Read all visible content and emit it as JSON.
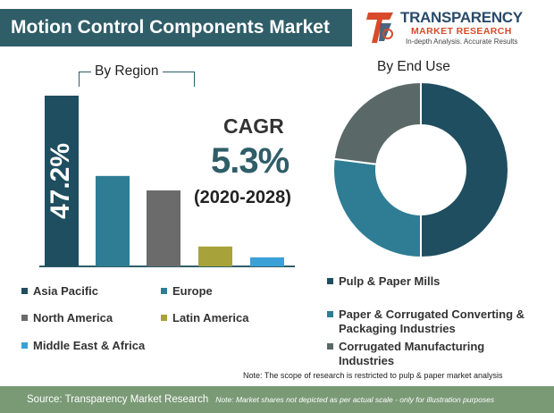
{
  "header": {
    "title": "Motion Control Components Market"
  },
  "logo": {
    "line1": "TRANSPARENCY",
    "line2": "MARKET RESEARCH",
    "line3": "In-depth Analysis. Accurate Results",
    "icon": "tmr-logo-mark",
    "colors": {
      "primary": "#2a4a6a",
      "accent": "#d84a2a"
    }
  },
  "headings": {
    "by_region": "By Region",
    "by_end_use": "By End Use"
  },
  "cagr": {
    "label": "CAGR",
    "value": "5.3%",
    "period": "(2020-2028)"
  },
  "chart_data": [
    {
      "type": "bar",
      "title": "By Region",
      "categories": [
        "Asia Pacific",
        "Europe",
        "North America",
        "Latin America",
        "Middle East & Africa"
      ],
      "values": [
        47.2,
        25,
        21,
        5.5,
        2.5
      ],
      "value_labels": [
        "47.2%",
        "",
        "",
        "",
        ""
      ],
      "colors": [
        "#1e4e5f",
        "#2e7d94",
        "#6b6b6b",
        "#a8a23a",
        "#3aa0d8"
      ],
      "grid": false
    },
    {
      "type": "pie",
      "title": "By End Use",
      "donut": true,
      "categories": [
        "Pulp & Paper Mills",
        "Paper & Corrugated Converting & Packaging Industries",
        "Corrugated Manufacturing Industries"
      ],
      "values": [
        50,
        27,
        23
      ],
      "colors": [
        "#1e4e5f",
        "#2e7d94",
        "#5a6868"
      ]
    }
  ],
  "region_legend": [
    {
      "label": "Asia Pacific",
      "color": "#1e4e5f"
    },
    {
      "label": "Europe",
      "color": "#2e7d94"
    },
    {
      "label": "North America",
      "color": "#6b6b6b"
    },
    {
      "label": "Latin America",
      "color": "#a8a23a"
    },
    {
      "label": "Middle East & Africa",
      "color": "#3aa0d8"
    }
  ],
  "enduse_legend": [
    {
      "label": "Pulp & Paper Mills",
      "color": "#1e4e5f"
    },
    {
      "label": "Paper & Corrugated Converting & Packaging Industries",
      "color": "#2e7d94"
    },
    {
      "label": "Corrugated Manufacturing Industries",
      "color": "#5a6868"
    }
  ],
  "note": "Note: The scope of research is restricted to pulp & paper market analysis",
  "footer": {
    "source": "Source: Transparency Market Research",
    "note": "Note: Market shares not depicted as per actual scale - only for illustration purposes"
  }
}
